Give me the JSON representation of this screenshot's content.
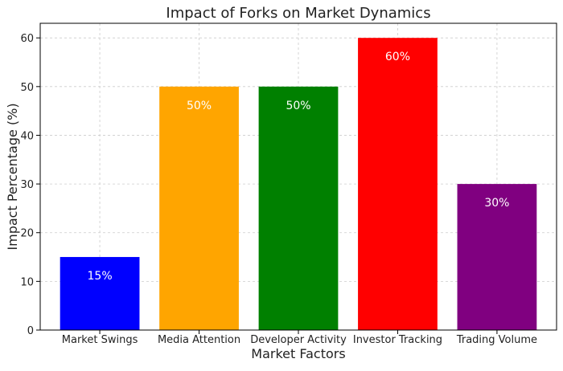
{
  "chart_data": {
    "type": "bar",
    "title": "Impact of Forks on Market Dynamics",
    "xlabel": "Market Factors",
    "ylabel": "Impact Percentage (%)",
    "categories": [
      "Market Swings",
      "Media Attention",
      "Developer Activity",
      "Investor Tracking",
      "Trading Volume"
    ],
    "values": [
      15,
      50,
      50,
      60,
      30
    ],
    "data_labels": [
      "15%",
      "50%",
      "50%",
      "60%",
      "30%"
    ],
    "colors": [
      "#0000ff",
      "#ffa500",
      "#008000",
      "#ff0000",
      "#800080"
    ],
    "ylim": [
      0,
      63
    ],
    "yticks": [
      0,
      10,
      20,
      30,
      40,
      50,
      60
    ],
    "grid": true,
    "legend": "none"
  }
}
